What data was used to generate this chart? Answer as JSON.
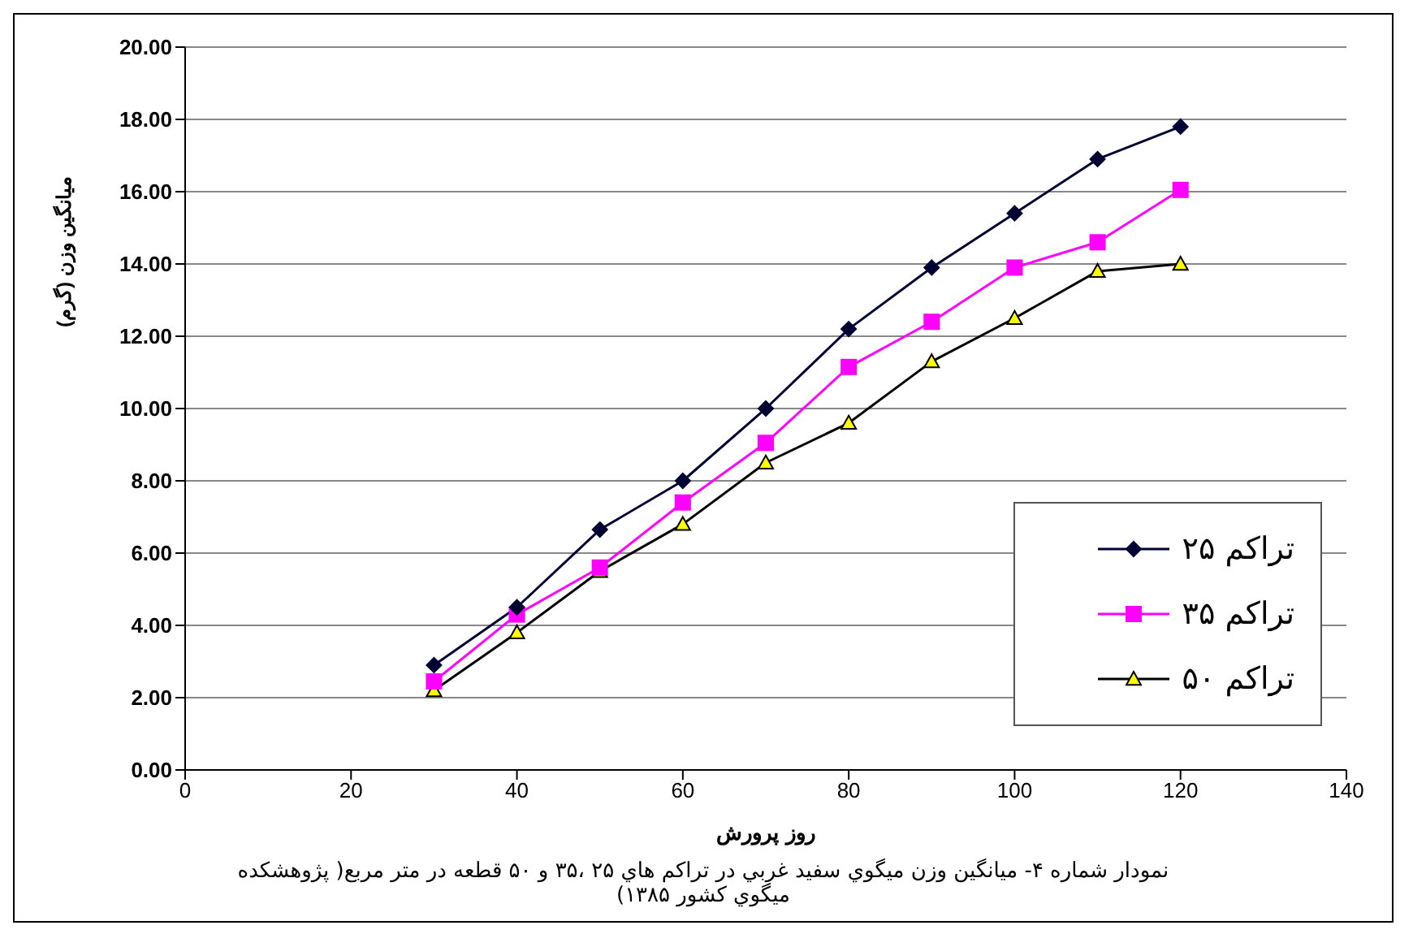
{
  "chart_data": {
    "type": "line",
    "xlabel": "روز پرورش",
    "ylabel": "میانگین وزن (گرم)",
    "annotations": [
      "نمودار شماره ۴- میانگین وزن میگوي سفید غربي  در تراکم هاي ۲۵ ،۳۵ و ۵۰ قطعه در متر مربع( پژوهشکده میگوي کشور ۱۳۸۵)"
    ],
    "x": [
      30,
      40,
      50,
      60,
      70,
      80,
      90,
      100,
      110,
      120
    ],
    "series": [
      {
        "name": "تراکم ۲۵",
        "color": "#000033",
        "marker": "diamond",
        "values": [
          2.9,
          4.5,
          6.65,
          8.0,
          10.0,
          12.2,
          13.9,
          15.4,
          16.9,
          17.8
        ]
      },
      {
        "name": "تراکم ۳۵",
        "color": "#ff00ff",
        "marker": "square",
        "values": [
          2.45,
          4.3,
          5.6,
          7.4,
          9.05,
          11.15,
          12.4,
          13.9,
          14.6,
          16.05
        ]
      },
      {
        "name": "تراکم ۵۰",
        "color": "#000000",
        "colors": [
          "#ffff00",
          "#ffff00",
          "#ffff00",
          "#ffff00",
          "#ffff00",
          "#ffff00",
          "#ffff00",
          "#ffff00",
          "#ffff00",
          "#ffff00"
        ],
        "marker": "triangle",
        "values": [
          2.2,
          3.8,
          5.5,
          6.8,
          8.5,
          9.6,
          11.3,
          12.5,
          13.8,
          14.0
        ]
      }
    ],
    "xlim": [
      0,
      140
    ],
    "xticks": [
      0,
      20,
      40,
      60,
      80,
      100,
      120,
      140
    ],
    "ylim": [
      0,
      20
    ],
    "yticks": [
      {
        "value": 0,
        "label": "0.00"
      },
      {
        "value": 2,
        "label": "2.00"
      },
      {
        "value": 4,
        "label": "4.00"
      },
      {
        "value": 6,
        "label": "6.00"
      },
      {
        "value": 8,
        "label": "8.00"
      },
      {
        "value": 10,
        "label": "10.00"
      },
      {
        "value": 12,
        "label": "12.00"
      },
      {
        "value": 14,
        "label": "14.00"
      },
      {
        "value": 16,
        "label": "16.00"
      },
      {
        "value": 18,
        "label": "18.00"
      },
      {
        "value": 20,
        "label": "20.00"
      }
    ],
    "grid": "y",
    "legend": "bottom right"
  }
}
